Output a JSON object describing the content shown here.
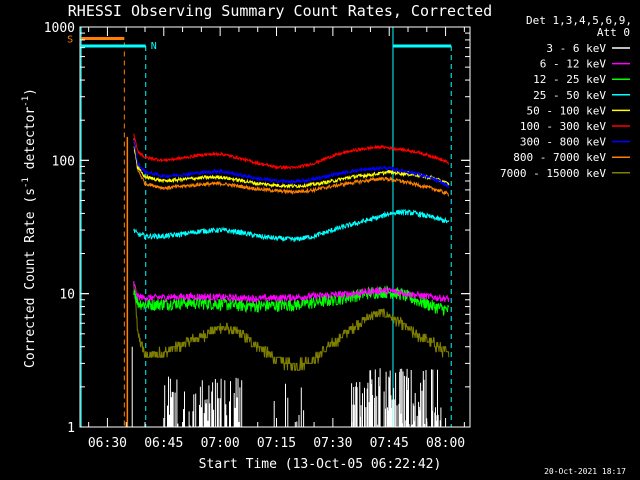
{
  "chart_data": {
    "type": "line",
    "title": "RHESSI Observing Summary Count Rates, Corrected",
    "xlabel": "Start Time (13-Oct-05 06:22:42)",
    "ylabel": "Corrected Count Rate (s",
    "ylabel_sup1": "-1",
    "ylabel_mid": " detector",
    "ylabel_sup2": "-1",
    "ylabel_end": ")",
    "x_ticks": [
      "06:30",
      "06:45",
      "07:00",
      "07:15",
      "07:30",
      "07:45",
      "08:00"
    ],
    "x_tick_minutes": [
      30,
      45,
      60,
      75,
      90,
      105,
      120
    ],
    "xlim_minutes": [
      22.7,
      126.5
    ],
    "y_scale": "log",
    "ylim": [
      1,
      1000
    ],
    "y_tick_labels": [
      "1",
      "10",
      "100",
      "1000"
    ],
    "y_tick_values": [
      1,
      10,
      100,
      1000
    ],
    "legend": {
      "position": "right",
      "header": [
        "Det 1,3,4,5,6,9,",
        "Att 0"
      ]
    },
    "series": [
      {
        "name": "3 - 6 keV",
        "color": "#ffffff"
      },
      {
        "name": "6 - 12 keV",
        "color": "#ff00ff"
      },
      {
        "name": "12 - 25 keV",
        "color": "#00ff00"
      },
      {
        "name": "25 - 50 keV",
        "color": "#00ffff"
      },
      {
        "name": "50 - 100 keV",
        "color": "#ffff00"
      },
      {
        "name": "100 - 300 keV",
        "color": "#ff0000"
      },
      {
        "name": "300 - 800 keV",
        "color": "#0000ff"
      },
      {
        "name": "800 - 7000 keV",
        "color": "#ff8000"
      },
      {
        "name": "7000 - 15000 keV",
        "color": "#808000"
      }
    ],
    "profiles": {
      "t": [
        37,
        38,
        40,
        45,
        50,
        55,
        60,
        65,
        70,
        75,
        80,
        85,
        90,
        95,
        100,
        103,
        105,
        108,
        112,
        117,
        120,
        121
      ],
      "r100_300": [
        155,
        118,
        105,
        100,
        104,
        110,
        112,
        104,
        95,
        89,
        88,
        95,
        108,
        118,
        124,
        126,
        124,
        121,
        116,
        106,
        98,
        95
      ],
      "r300_800": [
        140,
        95,
        82,
        76,
        78,
        81,
        83,
        78,
        73,
        70,
        69,
        72,
        78,
        83,
        86,
        88,
        87,
        84,
        80,
        72,
        66,
        63
      ],
      "r50_100": [
        130,
        88,
        75,
        70,
        72,
        74,
        75,
        71,
        67,
        65,
        64,
        66,
        70,
        75,
        78,
        80,
        82,
        80,
        78,
        73,
        68,
        66
      ],
      "r800_7000": [
        145,
        85,
        67,
        62,
        64,
        66,
        67,
        64,
        61,
        59,
        58,
        60,
        64,
        68,
        71,
        73,
        72,
        70,
        66,
        61,
        57,
        55
      ],
      "r25_50": [
        30,
        28,
        27,
        27,
        28,
        29.5,
        30,
        29,
        27,
        26,
        25.5,
        27,
        30,
        33,
        36,
        38,
        40,
        41,
        40,
        37,
        35,
        34
      ],
      "r12_25": [
        11,
        8.6,
        8.3,
        8.4,
        8.6,
        8.5,
        8.4,
        8.2,
        8.1,
        8.2,
        8.3,
        8.6,
        9.0,
        9.6,
        10.2,
        10.4,
        10.3,
        10.0,
        9.0,
        8.0,
        7.6,
        7.5
      ],
      "r6_12": [
        12,
        9.5,
        9.3,
        9.4,
        9.5,
        9.5,
        9.4,
        9.3,
        9.2,
        9.3,
        9.4,
        9.6,
        9.8,
        10.0,
        10.4,
        10.6,
        10.5,
        10.2,
        9.8,
        9.4,
        9.2,
        9.1
      ],
      "r7000_15000": [
        12,
        5.0,
        3.4,
        3.6,
        4.2,
        4.8,
        5.6,
        5.1,
        4.0,
        3.2,
        2.9,
        3.2,
        4.2,
        5.5,
        6.8,
        7.2,
        6.8,
        6.0,
        4.9,
        4.2,
        3.6,
        3.5
      ]
    },
    "time_marks": {
      "cyan_solid": [
        23.0,
        106
      ],
      "orange_dashed": [
        34.5
      ],
      "cyan_dashed": [
        40.2,
        121.5
      ],
      "orange_bar": {
        "label": "S",
        "start": 23.0,
        "end": 34.5,
        "y": 820
      },
      "cyan_bar_1": {
        "label": "N",
        "start": 23.0,
        "end": 40.2,
        "y": 720
      },
      "cyan_bar_2": {
        "start": 106,
        "end": 121.5,
        "y": 720
      }
    }
  },
  "footer": {
    "timestamp": "20-Oct-2021 18:17"
  },
  "colors": {
    "background": "#000000",
    "axes": "#ffffff"
  }
}
